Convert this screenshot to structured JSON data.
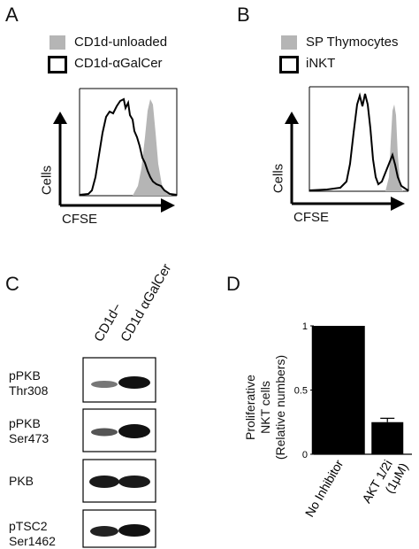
{
  "panels": {
    "A": {
      "letter": "A",
      "legend": [
        {
          "label": "CD1d-unloaded",
          "style": "filled-gray"
        },
        {
          "label": "CD1d-αGalCer",
          "style": "outline-black"
        }
      ],
      "y_axis_label": "Cells",
      "x_axis_label": "CFSE"
    },
    "B": {
      "letter": "B",
      "legend": [
        {
          "label": "SP Thymocytes",
          "style": "filled-gray"
        },
        {
          "label": "iNKT",
          "style": "outline-black"
        }
      ],
      "y_axis_label": "Cells",
      "x_axis_label": "CFSE"
    },
    "C": {
      "letter": "C",
      "lanes": [
        "CD1d−",
        "CD1d αGalCer"
      ],
      "rows": [
        {
          "label_line1": "pPKB",
          "label_line2": "Thr308"
        },
        {
          "label_line1": "pPKB",
          "label_line2": "Ser473"
        },
        {
          "label_line1": "PKB",
          "label_line2": ""
        },
        {
          "label_line1": "pTSC2",
          "label_line2": "Ser1462"
        }
      ]
    },
    "D": {
      "letter": "D",
      "ylabel_lines": [
        "Proliferative",
        "NKT cells",
        "(Relative numbers)"
      ]
    }
  },
  "chart_data": {
    "type": "bar",
    "categories": [
      "No Inhibitor",
      "AKT 1/2i (1μM)"
    ],
    "category_lines": [
      [
        "No Inhibitor"
      ],
      [
        "AKT 1/2i",
        "(1μM)"
      ]
    ],
    "values": [
      1.0,
      0.25
    ],
    "errors": [
      0,
      0.03
    ],
    "ylim": [
      0,
      1
    ],
    "yticks": [
      0,
      0.5,
      1
    ],
    "ytick_labels": [
      "0",
      "0.5",
      "1"
    ],
    "bar_color": "#000000"
  }
}
